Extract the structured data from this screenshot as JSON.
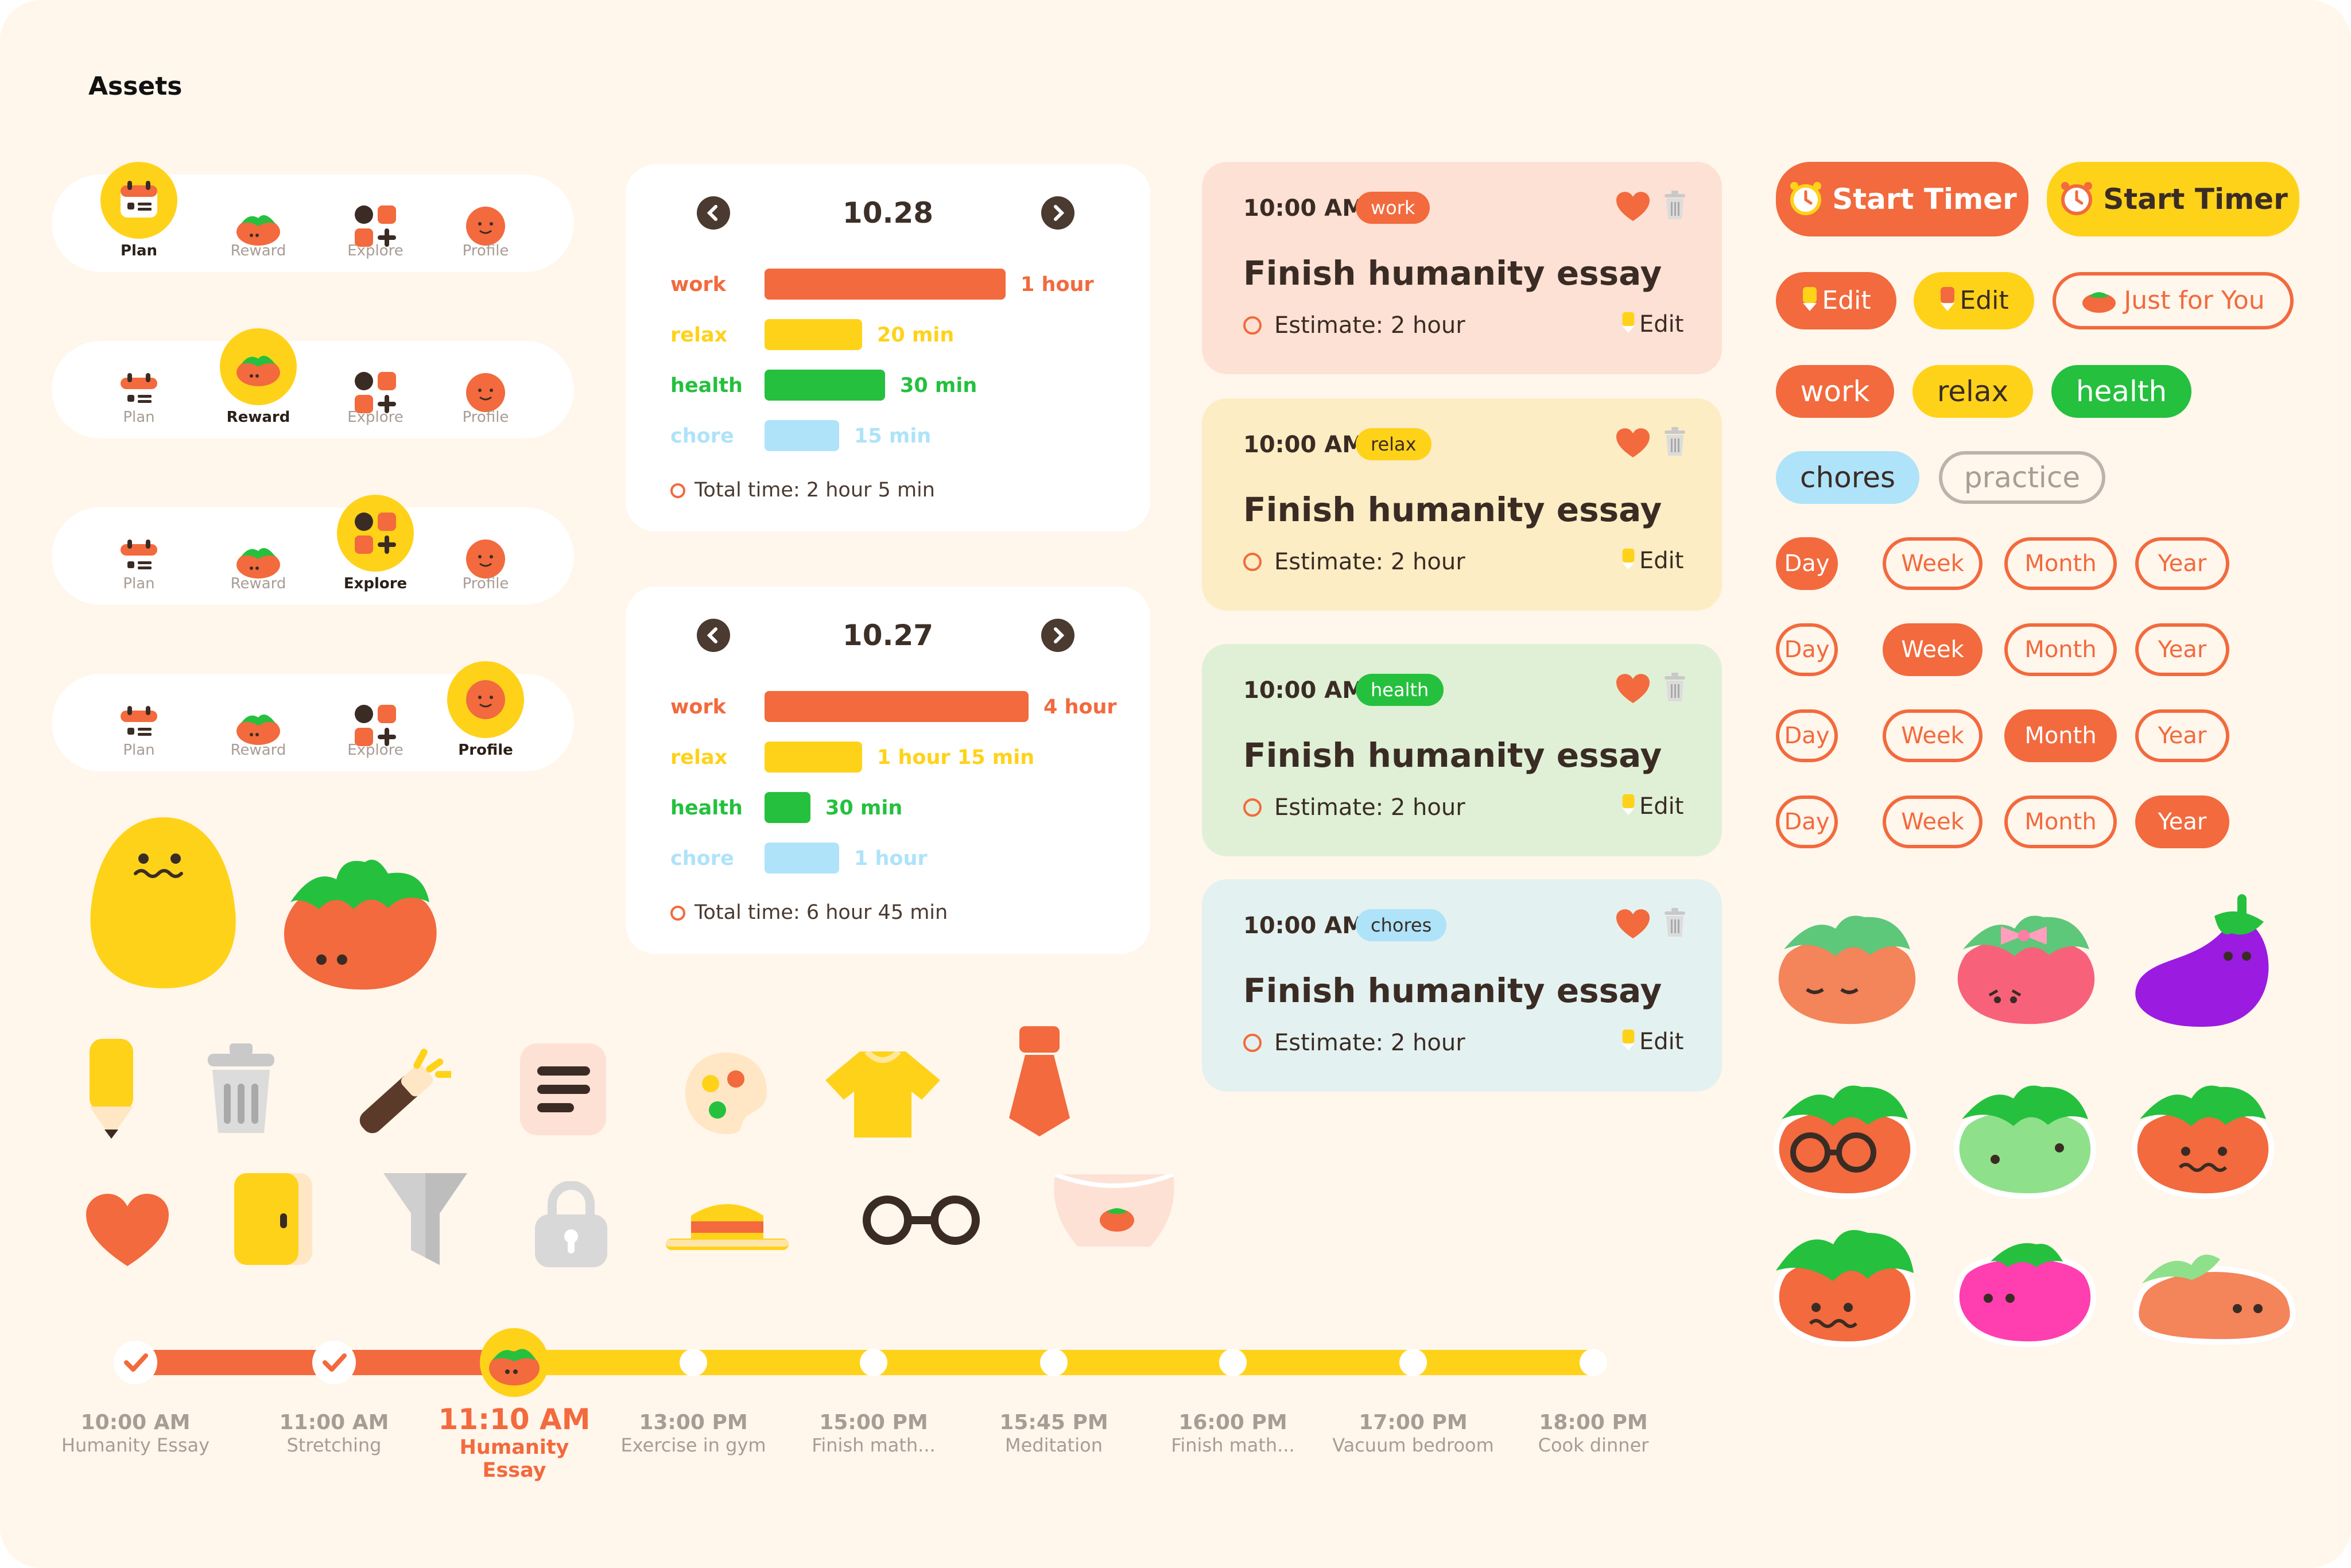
{
  "page_title": "Assets",
  "nav_bars": [
    {
      "active": "Plan",
      "items": [
        "Plan",
        "Reward",
        "Explore",
        "Profile"
      ]
    },
    {
      "active": "Reward",
      "items": [
        "Plan",
        "Reward",
        "Explore",
        "Profile"
      ]
    },
    {
      "active": "Explore",
      "items": [
        "Plan",
        "Reward",
        "Explore",
        "Profile"
      ]
    },
    {
      "active": "Profile",
      "items": [
        "Plan",
        "Reward",
        "Explore",
        "Profile"
      ]
    }
  ],
  "summary_cards": [
    {
      "date": "10.28",
      "rows": [
        {
          "category": "work",
          "duration": "1 hour",
          "fraction": 0.42
        },
        {
          "category": "relax",
          "duration": "20 min",
          "fraction": 0.17
        },
        {
          "category": "health",
          "duration": "30 min",
          "fraction": 0.21
        },
        {
          "category": "chore",
          "duration": "15 min",
          "fraction": 0.13
        }
      ],
      "total": "Total time: 2 hour 5 min"
    },
    {
      "date": "10.27",
      "rows": [
        {
          "category": "work",
          "duration": "4 hour",
          "fraction": 0.46
        },
        {
          "category": "relax",
          "duration": "1 hour 15 min",
          "fraction": 0.17
        },
        {
          "category": "health",
          "duration": "30 min",
          "fraction": 0.08
        },
        {
          "category": "chore",
          "duration": "1 hour",
          "fraction": 0.13
        }
      ],
      "total": "Total time: 6 hour 45 min"
    }
  ],
  "category_colors": {
    "work": "#f26a3d",
    "relax": "#ffd21a",
    "health": "#25c03e",
    "chore": "#aee3fa"
  },
  "task_cards": [
    {
      "time": "10:00 AM",
      "tag": "work",
      "title": "Finish humanity essay",
      "estimate": "Estimate: 2 hour",
      "edit": "Edit",
      "bg": "#fde1d4"
    },
    {
      "time": "10:00 AM",
      "tag": "relax",
      "title": "Finish humanity essay",
      "estimate": "Estimate: 2 hour",
      "edit": "Edit",
      "bg": "#fdedc4"
    },
    {
      "time": "10:00 AM",
      "tag": "health",
      "title": "Finish humanity essay",
      "estimate": "Estimate: 2 hour",
      "edit": "Edit",
      "bg": "#dff0d6"
    },
    {
      "time": "10:00 AM",
      "tag": "chores",
      "title": "Finish humanity essay",
      "estimate": "Estimate: 2 hour",
      "edit": "Edit",
      "bg": "#e4f1f1"
    }
  ],
  "buttons": {
    "start_timer_1": "Start Timer",
    "start_timer_2": "Start Timer",
    "edit_1": "Edit",
    "edit_2": "Edit",
    "just_for_you": "Just for You"
  },
  "tags": [
    "work",
    "relax",
    "health",
    "chores",
    "practice"
  ],
  "period_rows": [
    {
      "selected": "Day",
      "options": [
        "Day",
        "Week",
        "Month",
        "Year"
      ]
    },
    {
      "selected": "Week",
      "options": [
        "Day",
        "Week",
        "Month",
        "Year"
      ]
    },
    {
      "selected": "Month",
      "options": [
        "Day",
        "Week",
        "Month",
        "Year"
      ]
    },
    {
      "selected": "Year",
      "options": [
        "Day",
        "Week",
        "Month",
        "Year"
      ]
    }
  ],
  "timeline": [
    {
      "time": "10:00 AM",
      "task": "Humanity Essay",
      "state": "done"
    },
    {
      "time": "11:00 AM",
      "task": "Stretching",
      "state": "done"
    },
    {
      "time": "11:10 AM",
      "task": "Humanity Essay",
      "state": "current"
    },
    {
      "time": "13:00 PM",
      "task": "Exercise in gym",
      "state": "upcoming"
    },
    {
      "time": "15:00 PM",
      "task": "Finish math...",
      "state": "upcoming"
    },
    {
      "time": "15:45 PM",
      "task": "Meditation",
      "state": "upcoming"
    },
    {
      "time": "16:00 PM",
      "task": "Finish math...",
      "state": "upcoming"
    },
    {
      "time": "17:00 PM",
      "task": "Vacuum bedroom",
      "state": "upcoming"
    },
    {
      "time": "18:00 PM",
      "task": "Cook dinner",
      "state": "upcoming"
    }
  ],
  "icons": [
    "pencil-icon",
    "trash-icon",
    "magic-wand-icon",
    "list-icon",
    "palette-icon",
    "tshirt-icon",
    "necktie-icon",
    "heart-icon",
    "door-icon",
    "filter-icon",
    "lock-icon",
    "straw-hat-icon",
    "glasses-icon",
    "apron-icon"
  ],
  "characters": [
    "potato-character",
    "tomato-character",
    "sleepy-tomato",
    "pink-bow-tomato",
    "eggplant-character",
    "glasses-tomato",
    "green-tomato",
    "smiling-tomato",
    "grumpy-tomato",
    "pink-tomato",
    "flat-tomato"
  ]
}
